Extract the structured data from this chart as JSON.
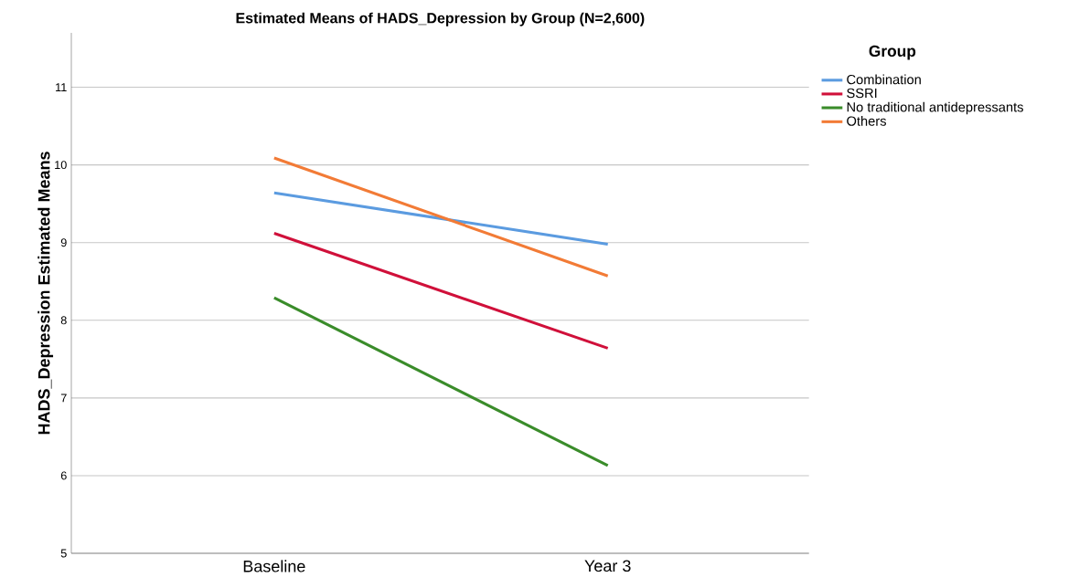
{
  "chart_data": {
    "type": "line",
    "title": "Estimated Means of  HADS_Depression by Group (N=2,600)",
    "ylabel": "HADS_Depression Estimated Means",
    "legend_title": "Group",
    "categories": [
      "Baseline",
      "Year 3"
    ],
    "series": [
      {
        "name": "Combination",
        "color": "#5b9be0",
        "values": [
          9.64,
          8.98
        ]
      },
      {
        "name": "SSRI",
        "color": "#d0103a",
        "values": [
          9.12,
          7.64
        ]
      },
      {
        "name": "No traditional antidepressants",
        "color": "#3a8c2a",
        "values": [
          8.29,
          6.13
        ]
      },
      {
        "name": "Others",
        "color": "#f27b36",
        "values": [
          10.09,
          8.57
        ]
      }
    ],
    "ylim": [
      5,
      11.7
    ],
    "yticks": [
      5,
      6,
      7,
      8,
      9,
      10,
      11
    ],
    "grid": "y",
    "legend": "top right",
    "marker": "none",
    "line_style": "solid"
  }
}
